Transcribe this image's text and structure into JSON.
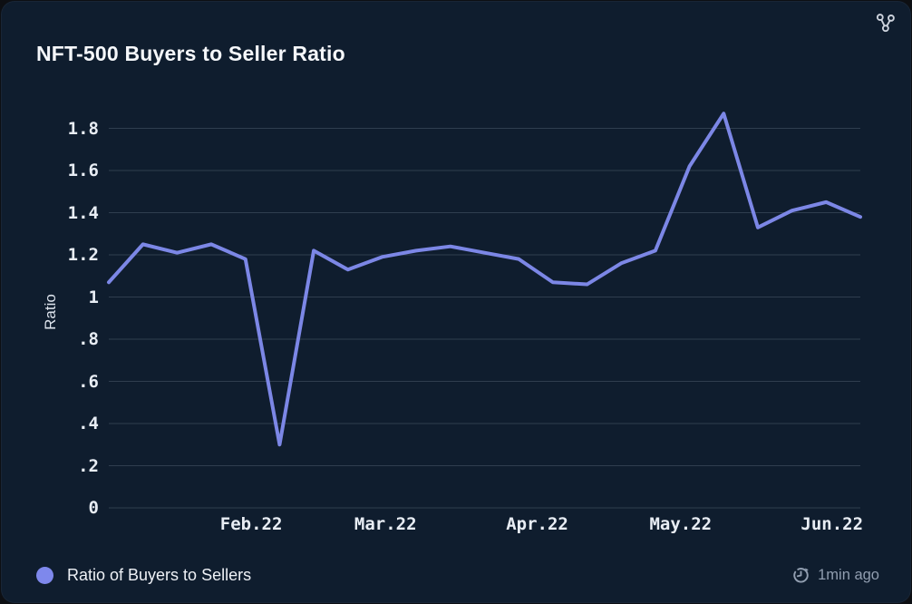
{
  "header": {
    "title": "NFT-500 Buyers to Seller Ratio",
    "fork_icon": "fork-nodes-icon"
  },
  "footer": {
    "legend_label": "Ratio of Buyers to Sellers",
    "updated": "1min ago",
    "clock_icon": "clock-refresh-icon"
  },
  "colors": {
    "page_bg": "#0d0f13",
    "card_bg": "#0f1d2e",
    "line": "#7c87e6",
    "legend_dot": "#7e88ec",
    "grid": "rgba(163,180,201,0.22)",
    "tick_text": "#e8edf4",
    "muted_text": "#919eb0"
  },
  "chart_data": {
    "type": "line",
    "title": "NFT-500 Buyers to Seller Ratio",
    "xlabel": "",
    "ylabel": "Ratio",
    "ylim": [
      0,
      1.95
    ],
    "grid": "horizontal",
    "legend_position": "bottom-left",
    "x_unit": "weekly-points",
    "y_ticks": [
      {
        "v": 0.0,
        "label": "0"
      },
      {
        "v": 0.2,
        "label": ".2"
      },
      {
        "v": 0.4,
        "label": ".4"
      },
      {
        "v": 0.6,
        "label": ".6"
      },
      {
        "v": 0.8,
        "label": ".8"
      },
      {
        "v": 1.0,
        "label": "1"
      },
      {
        "v": 1.2,
        "label": "1.2"
      },
      {
        "v": 1.4,
        "label": "1.4"
      },
      {
        "v": 1.6,
        "label": "1.6"
      },
      {
        "v": 1.8,
        "label": "1.8"
      }
    ],
    "x_ticks": [
      {
        "pos": 4.17,
        "label": "Feb.22"
      },
      {
        "pos": 8.1,
        "label": "Mar.22"
      },
      {
        "pos": 12.54,
        "label": "Apr.22"
      },
      {
        "pos": 16.74,
        "label": "May.22"
      },
      {
        "pos": 21.17,
        "label": "Jun.22"
      }
    ],
    "series": [
      {
        "name": "Ratio of Buyers to Sellers",
        "color": "#7c87e6",
        "values": [
          1.07,
          1.25,
          1.21,
          1.25,
          1.18,
          0.3,
          1.22,
          1.13,
          1.19,
          1.22,
          1.24,
          1.21,
          1.18,
          1.07,
          1.06,
          1.16,
          1.22,
          1.62,
          1.87,
          1.33,
          1.41,
          1.45,
          1.38
        ]
      }
    ]
  }
}
